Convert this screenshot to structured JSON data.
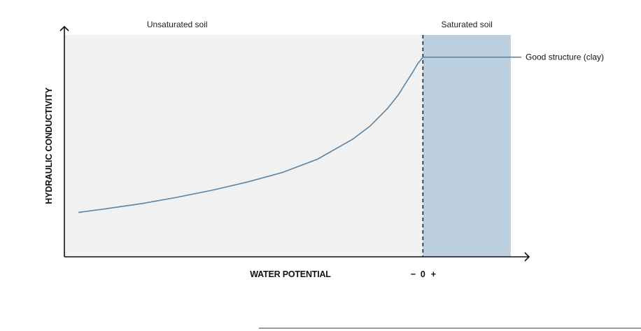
{
  "chart_data": {
    "type": "line",
    "xlabel": "WATER POTENTIAL",
    "ylabel": "HYDRAULIC CONDUCTIVITY",
    "zero_axis_labels": {
      "minus": "−",
      "zero": "0",
      "plus": "+"
    },
    "regions": [
      {
        "name": "unsaturated",
        "label": "Unsaturated soil",
        "x_range": [
          -1.0,
          0.0
        ],
        "color": "#f1f1f1"
      },
      {
        "name": "saturated",
        "label": "Saturated soil",
        "x_range": [
          0.0,
          0.25
        ],
        "color": "#bccfdf"
      }
    ],
    "xlim": [
      -1.02,
      0.28
    ],
    "ylim": [
      0,
      1
    ],
    "series": [
      {
        "name": "Good structure (clay)",
        "color": "#5b83a6",
        "x": [
          -0.98,
          -0.9,
          -0.8,
          -0.7,
          -0.6,
          -0.5,
          -0.4,
          -0.3,
          -0.2,
          -0.15,
          -0.1,
          -0.07,
          -0.05,
          -0.03,
          -0.015,
          0.0,
          0.05,
          0.1,
          0.15,
          0.2,
          0.25,
          0.28
        ],
        "y": [
          0.2,
          0.217,
          0.24,
          0.268,
          0.3,
          0.337,
          0.38,
          0.44,
          0.53,
          0.59,
          0.67,
          0.73,
          0.78,
          0.83,
          0.87,
          0.9,
          0.9,
          0.9,
          0.9,
          0.9,
          0.9,
          0.9
        ]
      }
    ],
    "grid": false,
    "legend": "inline-right"
  },
  "colors": {
    "axis": "#111111",
    "divider": "#222222",
    "rule": "#9a9a9a"
  }
}
